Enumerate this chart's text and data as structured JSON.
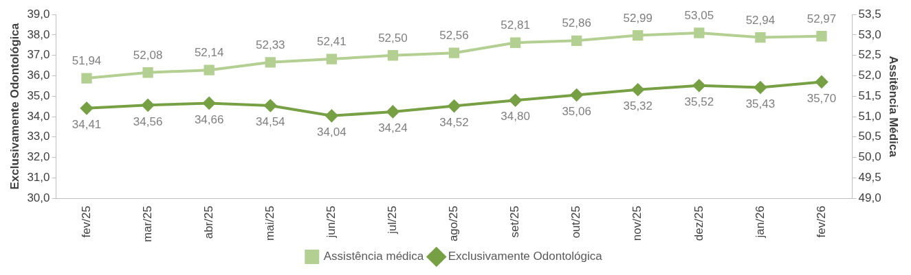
{
  "chart_data": {
    "type": "line",
    "ylabel": "Exclusivamente Odontológica",
    "y2label": "Assitência Médica",
    "categories": [
      "fev/25",
      "mar/25",
      "abr/25",
      "mai/25",
      "jun/25",
      "jul/25",
      "ago/25",
      "set/25",
      "out/25",
      "nov/25",
      "dez/25",
      "jan/26",
      "fev/26"
    ],
    "series": [
      {
        "name": "Assistência médica",
        "color": "#b3cf91",
        "axis": "y2",
        "marker": "square",
        "values": [
          51.94,
          52.08,
          52.14,
          52.33,
          52.41,
          52.5,
          52.56,
          52.81,
          52.86,
          52.99,
          53.05,
          52.94,
          52.97
        ],
        "value_labels": [
          "51,94",
          "52,08",
          "52,14",
          "52,33",
          "52,41",
          "52,50",
          "52,56",
          "52,81",
          "52,86",
          "52,99",
          "53,05",
          "52,94",
          "52,97"
        ]
      },
      {
        "name": "Exclusivamente Odontológica",
        "color": "#76a043",
        "axis": "y",
        "marker": "diamond",
        "values": [
          34.41,
          34.56,
          34.66,
          34.54,
          34.04,
          34.24,
          34.52,
          34.8,
          35.06,
          35.32,
          35.52,
          35.43,
          35.7
        ],
        "value_labels": [
          "34,41",
          "34,56",
          "34,66",
          "34,54",
          "34,04",
          "34,24",
          "34,52",
          "34,80",
          "35,06",
          "35,32",
          "35,52",
          "35,43",
          "35,70"
        ]
      }
    ],
    "ylim": [
      30,
      39
    ],
    "yticks": [
      {
        "value": 30,
        "label": "30,0"
      },
      {
        "value": 31,
        "label": "31,0"
      },
      {
        "value": 32,
        "label": "32,0"
      },
      {
        "value": 33,
        "label": "33,0"
      },
      {
        "value": 34,
        "label": "34,0"
      },
      {
        "value": 35,
        "label": "35,0"
      },
      {
        "value": 36,
        "label": "36,0"
      },
      {
        "value": 37,
        "label": "37,0"
      },
      {
        "value": 38,
        "label": "38,0"
      },
      {
        "value": 39,
        "label": "39,0"
      }
    ],
    "y2lim": [
      49,
      53.5
    ],
    "y2ticks": [
      {
        "value": 49,
        "label": "49,0"
      },
      {
        "value": 49.5,
        "label": "49,5"
      },
      {
        "value": 50,
        "label": "50,0"
      },
      {
        "value": 50.5,
        "label": "50,5"
      },
      {
        "value": 51,
        "label": "51,0"
      },
      {
        "value": 51.5,
        "label": "51,5"
      },
      {
        "value": 52,
        "label": "52,0"
      },
      {
        "value": 52.5,
        "label": "52,5"
      },
      {
        "value": 53,
        "label": "53,0"
      },
      {
        "value": 53.5,
        "label": "53,5"
      }
    ],
    "grid": false,
    "legend": "bottom",
    "line_style": "solid"
  }
}
